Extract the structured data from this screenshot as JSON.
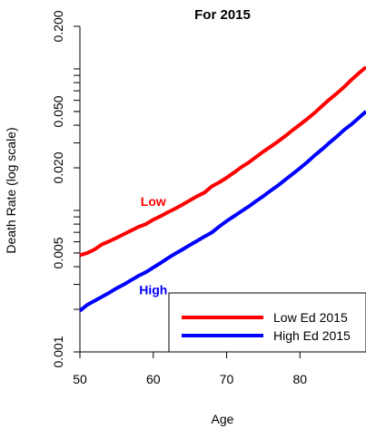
{
  "chart_data": {
    "type": "line",
    "title": "For 2015",
    "xlabel": "Age",
    "ylabel": "Death Rate (log scale)",
    "xlim": [
      50,
      89
    ],
    "ylim": [
      0.001,
      0.2
    ],
    "yscale": "log",
    "xticks": [
      50,
      60,
      70,
      80
    ],
    "yticks": [
      0.001,
      0.005,
      0.02,
      0.05,
      0.2
    ],
    "ytick_labels": [
      "0.001",
      "0.005",
      "0.020",
      "0.050",
      "0.200"
    ],
    "grid": false,
    "legend_position": "bottom-right",
    "series": [
      {
        "name": "Low Ed 2015",
        "color": "#ff0000",
        "x": [
          50,
          51,
          52,
          53,
          54,
          55,
          56,
          57,
          58,
          59,
          60,
          61,
          62,
          63,
          64,
          65,
          66,
          67,
          68,
          69,
          70,
          71,
          72,
          73,
          74,
          75,
          76,
          77,
          78,
          79,
          80,
          81,
          82,
          83,
          84,
          85,
          86,
          87,
          88,
          89
        ],
        "values": [
          0.00483,
          0.005,
          0.0053,
          0.00575,
          0.00605,
          0.0064,
          0.0068,
          0.0072,
          0.00765,
          0.008,
          0.0086,
          0.0091,
          0.0097,
          0.0103,
          0.011,
          0.0118,
          0.0126,
          0.0134,
          0.0148,
          0.0158,
          0.017,
          0.0185,
          0.0202,
          0.0218,
          0.0238,
          0.026,
          0.0282,
          0.0307,
          0.0336,
          0.0369,
          0.0404,
          0.0443,
          0.049,
          0.0546,
          0.0607,
          0.067,
          0.0744,
          0.0836,
          0.093,
          0.103
        ]
      },
      {
        "name": "High Ed 2015",
        "color": "#0000ff",
        "x": [
          50,
          51,
          52,
          53,
          54,
          55,
          56,
          57,
          58,
          59,
          60,
          61,
          62,
          63,
          64,
          65,
          66,
          67,
          68,
          69,
          70,
          71,
          72,
          73,
          74,
          75,
          76,
          77,
          78,
          79,
          80,
          81,
          82,
          83,
          84,
          85,
          86,
          87,
          88,
          89
        ],
        "values": [
          0.00195,
          0.00215,
          0.0023,
          0.00245,
          0.00262,
          0.00282,
          0.003,
          0.00322,
          0.00345,
          0.00366,
          0.00395,
          0.00425,
          0.0046,
          0.00495,
          0.0053,
          0.0057,
          0.0061,
          0.00655,
          0.007,
          0.0077,
          0.0084,
          0.0091,
          0.00985,
          0.01065,
          0.0116,
          0.0126,
          0.0138,
          0.015,
          0.0165,
          0.0181,
          0.0199,
          0.022,
          0.0245,
          0.027,
          0.03,
          0.0332,
          0.037,
          0.0405,
          0.045,
          0.05
        ]
      }
    ],
    "annotations": [
      {
        "text": "Low",
        "color": "#ff0000",
        "x": 60,
        "y": 0.0108
      },
      {
        "text": "High",
        "color": "#0000ff",
        "x": 60,
        "y": 0.00255
      }
    ]
  }
}
